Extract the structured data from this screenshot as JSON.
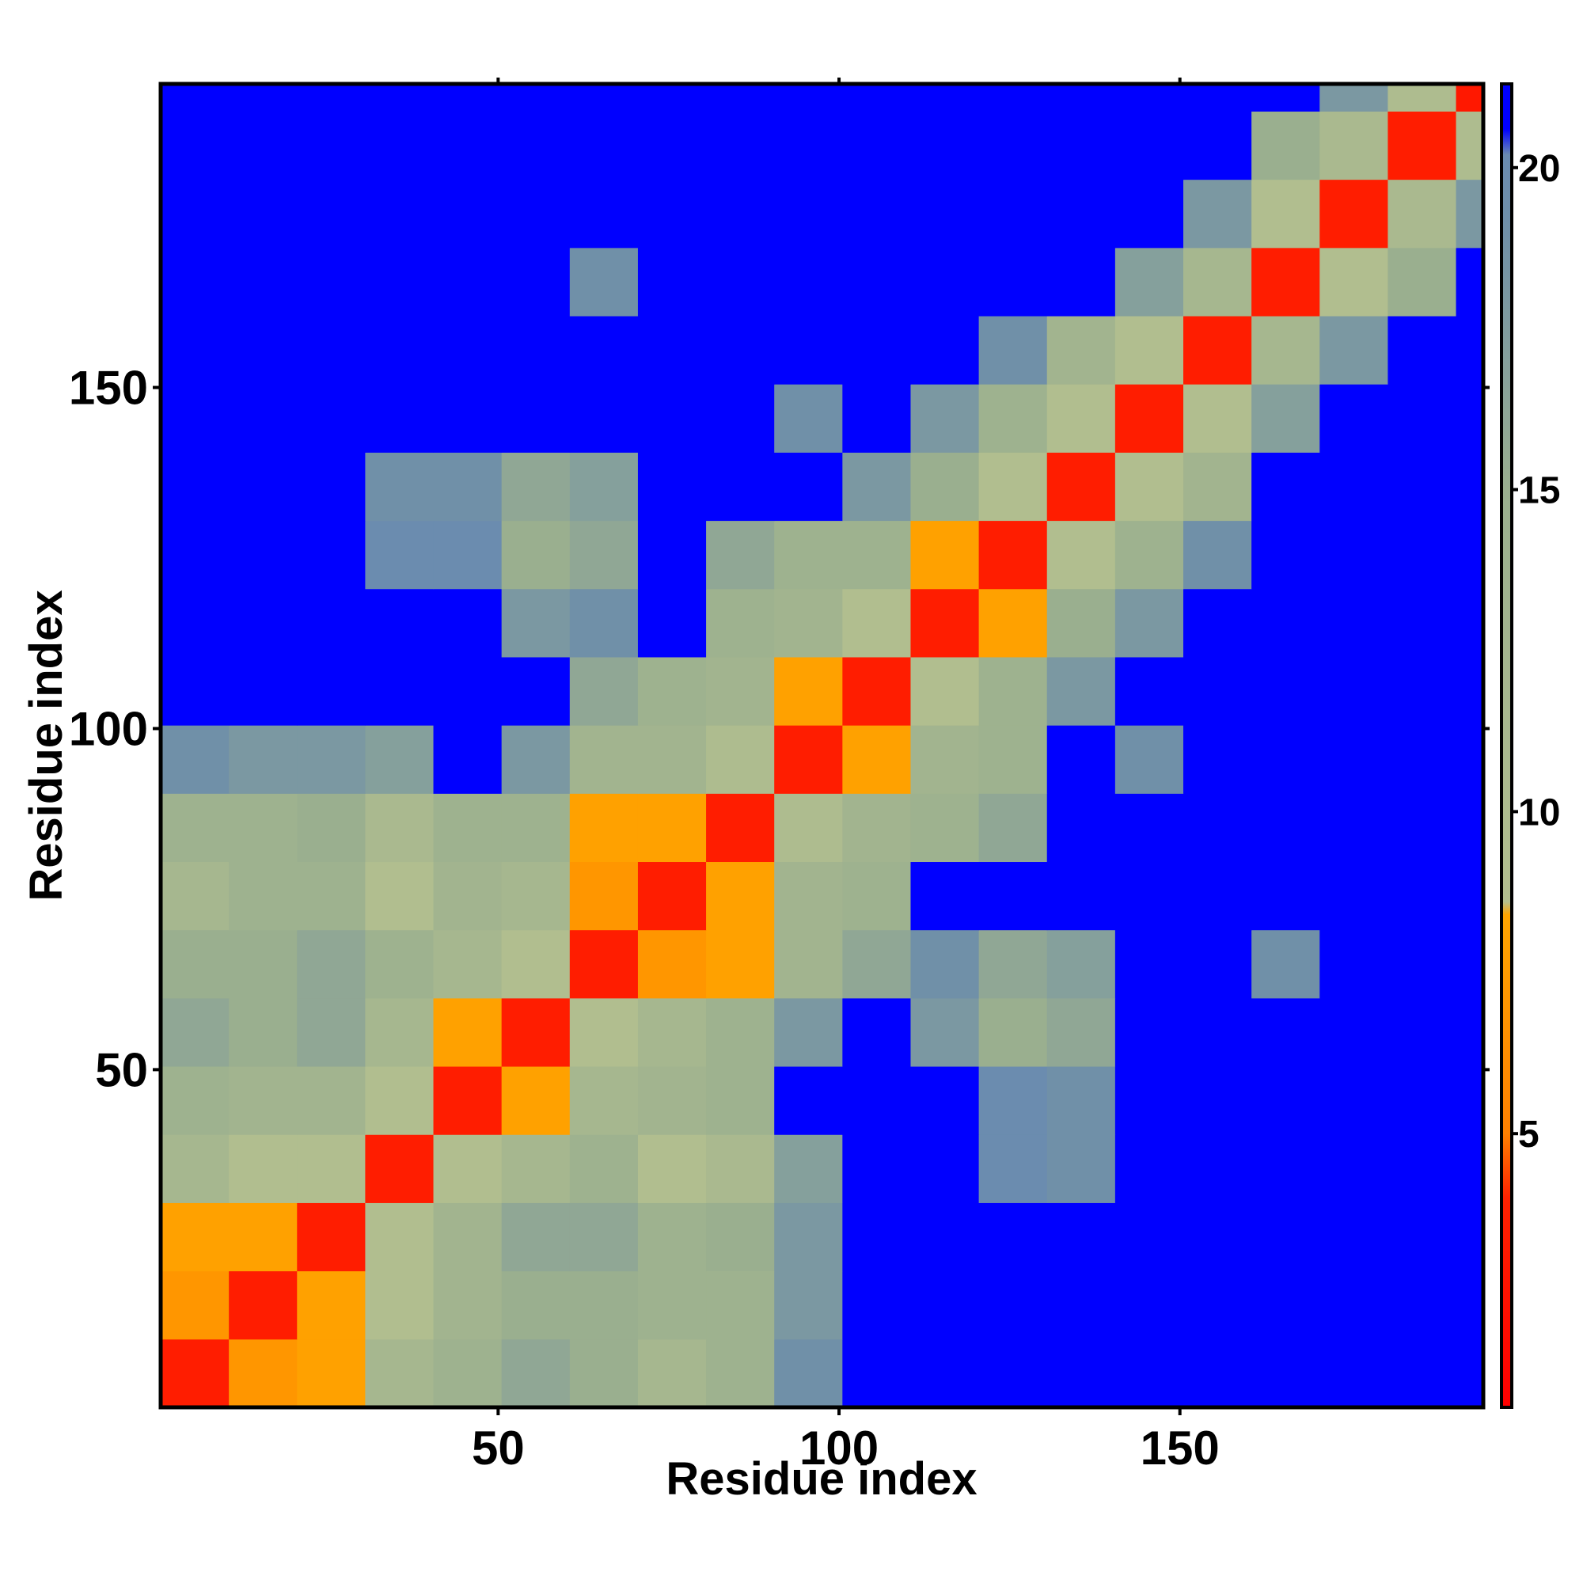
{
  "chart_data": {
    "type": "heatmap",
    "x_label": "Residue index",
    "y_label": "Residue index",
    "xlim": [
      0.5,
      194.5
    ],
    "ylim": [
      0.5,
      194.5
    ],
    "xticks": [
      50,
      100,
      150
    ],
    "yticks": [
      50,
      100,
      150
    ],
    "xbins": [
      0.5,
      10.5,
      20.5,
      30.5,
      40.5,
      50.5,
      60.5,
      70.5,
      80.5,
      90.5,
      100.5,
      110.5,
      120.5,
      130.5,
      140.5,
      150.5,
      160.5,
      170.5,
      180.5,
      190.5,
      194.5
    ],
    "ybins": [
      0.5,
      10.5,
      20.5,
      30.5,
      40.5,
      50.5,
      60.5,
      70.5,
      80.5,
      90.5,
      100.5,
      110.5,
      120.5,
      130.5,
      140.5,
      150.5,
      160.5,
      170.5,
      180.5,
      190.5,
      194.5
    ],
    "z": [
      [
        3.5,
        7,
        8,
        12,
        14,
        16,
        15,
        12,
        14,
        19,
        21,
        21,
        21,
        21,
        21,
        21,
        21,
        21,
        21,
        21
      ],
      [
        7,
        3.5,
        8,
        9,
        13,
        15,
        15,
        14,
        14,
        18,
        21,
        21,
        21,
        21,
        21,
        21,
        21,
        21,
        21,
        21
      ],
      [
        8,
        8,
        3.5,
        9,
        13,
        16,
        16,
        14,
        15,
        18,
        21,
        21,
        21,
        21,
        21,
        21,
        21,
        21,
        21,
        21
      ],
      [
        12,
        9,
        9,
        3.5,
        9,
        12,
        14,
        9,
        11,
        17,
        21,
        21,
        20,
        19,
        21,
        21,
        21,
        21,
        21,
        21
      ],
      [
        14,
        13,
        13,
        9,
        3.5,
        8,
        12,
        13,
        14,
        21,
        21,
        21,
        20,
        19,
        21,
        21,
        21,
        21,
        21,
        21
      ],
      [
        16,
        15,
        16,
        12,
        8,
        3.5,
        9,
        12,
        14,
        18,
        21,
        18,
        15,
        16,
        21,
        21,
        21,
        21,
        21,
        21
      ],
      [
        15,
        15,
        16,
        14,
        12,
        9,
        3.5,
        7,
        8,
        13,
        16,
        19,
        16,
        17,
        21,
        21,
        19,
        21,
        21,
        21
      ],
      [
        12,
        14,
        14,
        9,
        13,
        12,
        7,
        3.5,
        8,
        13,
        14,
        21,
        21,
        21,
        21,
        21,
        21,
        21,
        21,
        21
      ],
      [
        14,
        14,
        15,
        11,
        14,
        14,
        8,
        8,
        3.5,
        10,
        13,
        14,
        16,
        21,
        21,
        21,
        21,
        21,
        21,
        21
      ],
      [
        19,
        18,
        18,
        17,
        21,
        18,
        13,
        13,
        10,
        3.5,
        8,
        13,
        14,
        21,
        19,
        21,
        21,
        21,
        21,
        21
      ],
      [
        21,
        21,
        21,
        21,
        21,
        21,
        16,
        14,
        13,
        8,
        3.5,
        9,
        14,
        18,
        21,
        21,
        21,
        21,
        21,
        21
      ],
      [
        21,
        21,
        21,
        21,
        21,
        18,
        19,
        21,
        14,
        13,
        9,
        3.5,
        8,
        15,
        18,
        21,
        21,
        21,
        21,
        21
      ],
      [
        21,
        21,
        21,
        20,
        20,
        15,
        16,
        21,
        16,
        14,
        14,
        8,
        3.5,
        9,
        14,
        19,
        21,
        21,
        21,
        21
      ],
      [
        21,
        21,
        21,
        19,
        19,
        16,
        17,
        21,
        21,
        21,
        18,
        15,
        9,
        3.5,
        9,
        13,
        21,
        21,
        21,
        21
      ],
      [
        21,
        21,
        21,
        21,
        21,
        21,
        21,
        21,
        21,
        19,
        21,
        18,
        14,
        9,
        3.5,
        9,
        17,
        21,
        21,
        21
      ],
      [
        21,
        21,
        21,
        21,
        21,
        21,
        21,
        21,
        21,
        21,
        21,
        21,
        19,
        13,
        9,
        3.5,
        12,
        18,
        21,
        21
      ],
      [
        21,
        21,
        21,
        21,
        21,
        21,
        19,
        21,
        21,
        21,
        21,
        21,
        21,
        21,
        17,
        12,
        3.5,
        9,
        15,
        21
      ],
      [
        21,
        21,
        21,
        21,
        21,
        21,
        21,
        21,
        21,
        21,
        21,
        21,
        21,
        21,
        21,
        18,
        9,
        3.5,
        11,
        18
      ],
      [
        21,
        21,
        21,
        21,
        21,
        21,
        21,
        21,
        21,
        21,
        21,
        21,
        21,
        21,
        21,
        21,
        15,
        11,
        3.5,
        10
      ],
      [
        21,
        21,
        21,
        21,
        21,
        21,
        21,
        21,
        21,
        21,
        21,
        21,
        21,
        21,
        21,
        21,
        21,
        18,
        10,
        3
      ]
    ],
    "zlim": [
      0.75,
      21.3
    ],
    "zticks": [
      5,
      10,
      15,
      20
    ],
    "colorscale": [
      [
        0.75,
        "#ff0000"
      ],
      [
        4,
        "#ff2200"
      ],
      [
        5,
        "#ff8000"
      ],
      [
        8.4,
        "#ffa500"
      ],
      [
        8.6,
        "#b3bf8f"
      ],
      [
        15,
        "#9aaf8f"
      ],
      [
        19,
        "#7090a8"
      ],
      [
        20.2,
        "#6a8bb0"
      ],
      [
        20.6,
        "#0000ff"
      ],
      [
        21.3,
        "#0000ff"
      ]
    ]
  }
}
